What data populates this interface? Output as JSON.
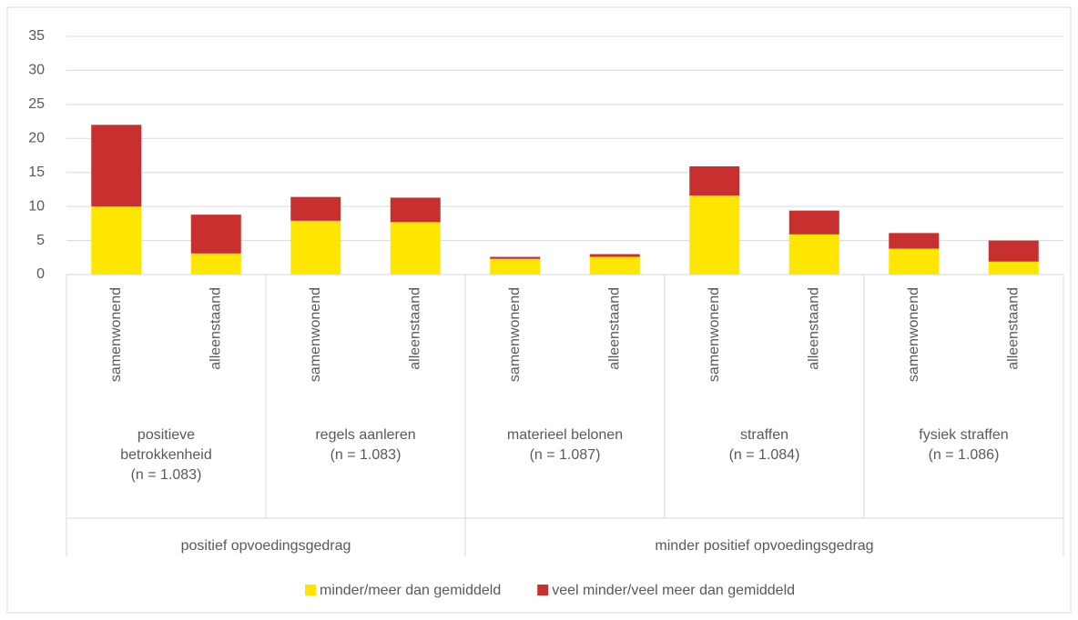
{
  "chart_data": {
    "type": "stacked_bar",
    "categories": [
      "samenwonend",
      "alleenstaand",
      "samenwonend",
      "alleenstaand",
      "samenwonend",
      "alleenstaand",
      "samenwonend",
      "alleenstaand",
      "samenwonend",
      "alleenstaand"
    ],
    "groups": [
      {
        "label": "positief opvoedingsgedrag",
        "subgroups": [
          {
            "name": "positieve betrokkenheid",
            "n": "(n = 1.083)"
          },
          {
            "name": "regels aanleren",
            "n": "(n = 1.083)"
          }
        ]
      },
      {
        "label": "minder positief opvoedingsgedrag",
        "subgroups": [
          {
            "name": "materieel belonen",
            "n": "(n = 1.087)"
          },
          {
            "name": "straffen",
            "n": "(n = 1.084)"
          },
          {
            "name": "fysiek straffen",
            "n": "(n = 1.086)"
          }
        ]
      }
    ],
    "series": [
      {
        "name": "minder/meer dan gemiddeld",
        "color": "#ffe600",
        "values": [
          10,
          3.1,
          7.9,
          7.7,
          2.3,
          2.6,
          11.6,
          5.9,
          3.8,
          1.9
        ]
      },
      {
        "name": "veel minder/veel meer dan gemiddeld",
        "color": "#c8302f",
        "values": [
          12,
          5.7,
          3.5,
          3.6,
          0.3,
          0.4,
          4.3,
          3.5,
          2.3,
          3.1
        ]
      }
    ],
    "ylim": [
      0,
      35
    ],
    "yticks": [
      0,
      5,
      10,
      15,
      20,
      25,
      30,
      35
    ],
    "grid": true,
    "legend": "bottom"
  }
}
